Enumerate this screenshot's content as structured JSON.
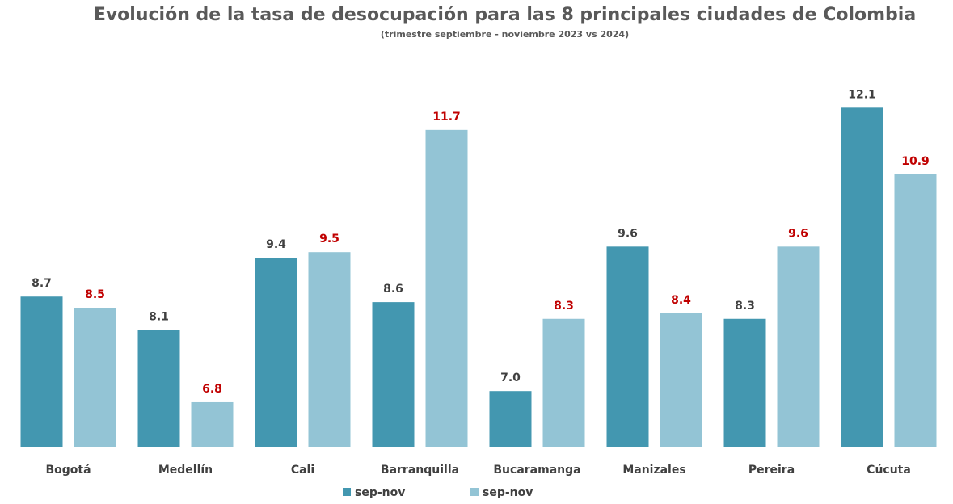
{
  "chart_data": {
    "type": "bar",
    "title": "Evolución de la tasa de desocupación para las 8 principales ciudades de Colombia",
    "subtitle": "(trimestre septiembre - noviembre 2023 vs 2024)",
    "categories": [
      "Bogotá",
      "Medellín",
      "Cali",
      "Barranquilla",
      "Bucaramanga",
      "Manizales",
      "Pereira",
      "Cúcuta"
    ],
    "series": [
      {
        "name": "sep-nov",
        "color": "#4397b0",
        "label_color": "#404040",
        "values": [
          8.7,
          8.1,
          9.4,
          8.6,
          7.0,
          9.6,
          8.3,
          12.1
        ]
      },
      {
        "name": "sep-nov",
        "color": "#93c4d5",
        "label_color": "#c00000",
        "values": [
          8.5,
          6.8,
          9.5,
          11.7,
          8.3,
          8.4,
          9.6,
          10.9
        ]
      }
    ],
    "ylim": [
      6,
      13
    ],
    "grid": false,
    "legend_position": "bottom",
    "xlabel": "",
    "ylabel": ""
  }
}
